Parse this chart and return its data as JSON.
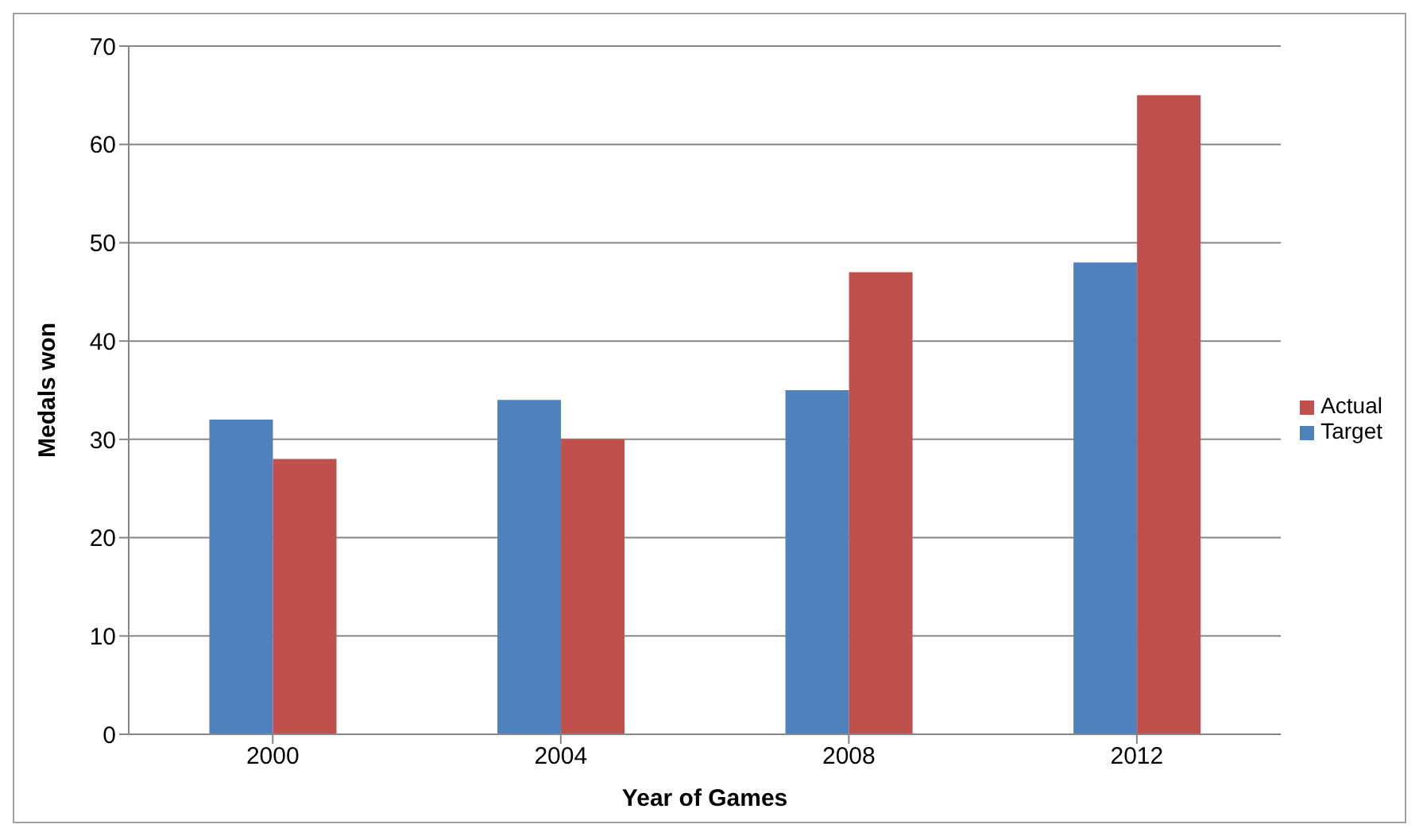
{
  "chart_data": {
    "type": "bar",
    "xlabel": "Year of Games",
    "ylabel": "Medals won",
    "categories": [
      "2000",
      "2004",
      "2008",
      "2012"
    ],
    "series": [
      {
        "name": "Target",
        "color": "#4f81bd",
        "values": [
          32,
          34,
          35,
          48
        ]
      },
      {
        "name": "Actual",
        "color": "#c0504d",
        "values": [
          28,
          30,
          47,
          65
        ]
      }
    ],
    "ylim": [
      0,
      70
    ],
    "yticks": [
      0,
      10,
      20,
      30,
      40,
      50,
      60,
      70
    ],
    "grid": "y",
    "legend": "right"
  }
}
